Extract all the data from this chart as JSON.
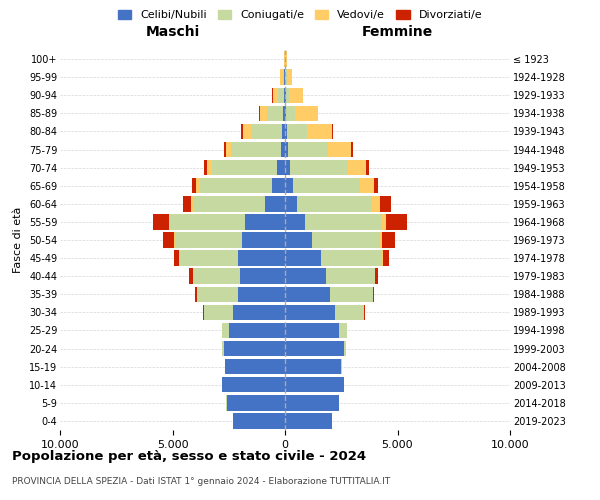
{
  "age_groups": [
    "0-4",
    "5-9",
    "10-14",
    "15-19",
    "20-24",
    "25-29",
    "30-34",
    "35-39",
    "40-44",
    "45-49",
    "50-54",
    "55-59",
    "60-64",
    "65-69",
    "70-74",
    "75-79",
    "80-84",
    "85-89",
    "90-94",
    "95-99",
    "100+"
  ],
  "birth_years": [
    "2019-2023",
    "2014-2018",
    "2009-2013",
    "2004-2008",
    "1999-2003",
    "1994-1998",
    "1989-1993",
    "1984-1988",
    "1979-1983",
    "1974-1978",
    "1969-1973",
    "1964-1968",
    "1959-1963",
    "1954-1958",
    "1949-1953",
    "1944-1948",
    "1939-1943",
    "1934-1938",
    "1929-1933",
    "1924-1928",
    "≤ 1923"
  ],
  "colors": {
    "celibe": "#4472C4",
    "coniugato": "#C5D9A0",
    "vedovo": "#FFCC66",
    "divorziato": "#CC2200"
  },
  "maschi": {
    "celibe": [
      2300,
      2600,
      2800,
      2650,
      2700,
      2500,
      2300,
      2100,
      2000,
      2100,
      1900,
      1800,
      900,
      600,
      350,
      180,
      130,
      80,
      50,
      30,
      10
    ],
    "coniugato": [
      3,
      5,
      10,
      30,
      100,
      300,
      1300,
      1800,
      2100,
      2600,
      3000,
      3300,
      3200,
      3200,
      2900,
      2200,
      1400,
      700,
      250,
      80,
      10
    ],
    "vedovo": [
      0,
      1,
      1,
      1,
      1,
      2,
      3,
      5,
      10,
      20,
      30,
      60,
      80,
      150,
      200,
      250,
      350,
      350,
      250,
      100,
      20
    ],
    "divorziato": [
      0,
      1,
      2,
      5,
      10,
      20,
      40,
      80,
      150,
      200,
      500,
      700,
      350,
      200,
      150,
      100,
      60,
      30,
      10,
      5,
      2
    ]
  },
  "femmine": {
    "nubile": [
      2100,
      2400,
      2600,
      2500,
      2600,
      2400,
      2200,
      2000,
      1800,
      1600,
      1200,
      900,
      550,
      350,
      200,
      120,
      80,
      50,
      30,
      20,
      5
    ],
    "coniugata": [
      3,
      5,
      10,
      30,
      120,
      350,
      1300,
      1900,
      2200,
      2700,
      3000,
      3400,
      3300,
      3000,
      2600,
      1800,
      900,
      400,
      150,
      50,
      10
    ],
    "vedova": [
      0,
      0,
      1,
      1,
      2,
      3,
      5,
      10,
      20,
      50,
      100,
      200,
      350,
      600,
      800,
      1000,
      1100,
      1000,
      600,
      250,
      60
    ],
    "divorziata": [
      0,
      0,
      1,
      3,
      8,
      15,
      30,
      60,
      120,
      250,
      600,
      900,
      500,
      180,
      120,
      80,
      50,
      20,
      10,
      5,
      2
    ]
  },
  "xlim": 10000,
  "title": "Popolazione per età, sesso e stato civile - 2024",
  "subtitle": "PROVINCIA DELLA SPEZIA - Dati ISTAT 1° gennaio 2024 - Elaborazione TUTTITALIA.IT",
  "xlabel_left": "Maschi",
  "xlabel_right": "Femmine",
  "ylabel_left": "Fasce di età",
  "legend_labels": [
    "Celibi/Nubili",
    "Coniugati/e",
    "Vedovi/e",
    "Divorziati/e"
  ],
  "xtick_labels": [
    "10.000",
    "5.000",
    "0",
    "5.000",
    "10.000"
  ],
  "xtick_values": [
    -10000,
    -5000,
    0,
    5000,
    10000
  ],
  "background_color": "#FFFFFF",
  "grid_color": "#CCCCCC"
}
